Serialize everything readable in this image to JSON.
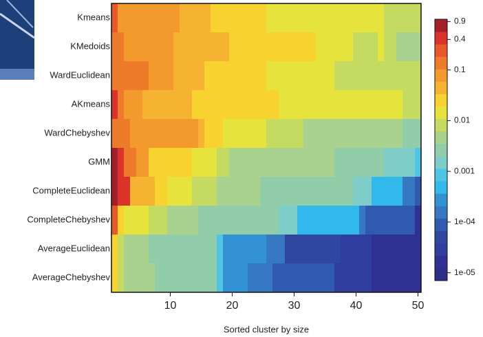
{
  "chart_data": {
    "type": "heatmap",
    "categories": [
      "Kmeans",
      "KMedoids",
      "WardEuclidean",
      "AKmeans",
      "WardChebyshev",
      "GMM",
      "CompleteEuclidean",
      "CompleteChebyshev",
      "AverageEuclidean",
      "AverageChebyshev"
    ],
    "x": [
      1,
      2,
      3,
      4,
      5,
      6,
      7,
      8,
      9,
      10,
      11,
      12,
      13,
      14,
      15,
      16,
      17,
      18,
      19,
      20,
      21,
      22,
      23,
      24,
      25,
      26,
      27,
      28,
      29,
      30,
      31,
      32,
      33,
      34,
      35,
      36,
      37,
      38,
      39,
      40,
      41,
      42,
      43,
      44,
      45,
      46,
      47,
      48,
      49,
      50
    ],
    "xlim": [
      0.5,
      50.5
    ],
    "xticks": [
      10,
      20,
      30,
      40,
      50
    ],
    "xlabel": "Sorted cluster by size",
    "values": [
      [
        0.2,
        0.07,
        0.07,
        0.07,
        0.07,
        0.07,
        0.07,
        0.07,
        0.07,
        0.07,
        0.07,
        0.04,
        0.04,
        0.04,
        0.04,
        0.04,
        0.025,
        0.025,
        0.025,
        0.025,
        0.025,
        0.025,
        0.025,
        0.025,
        0.025,
        0.015,
        0.015,
        0.015,
        0.015,
        0.015,
        0.015,
        0.015,
        0.015,
        0.015,
        0.015,
        0.015,
        0.015,
        0.015,
        0.015,
        0.015,
        0.015,
        0.015,
        0.015,
        0.015,
        0.008,
        0.008,
        0.008,
        0.008,
        0.008,
        0.008
      ],
      [
        0.12,
        0.12,
        0.07,
        0.07,
        0.07,
        0.07,
        0.07,
        0.07,
        0.07,
        0.07,
        0.04,
        0.04,
        0.04,
        0.04,
        0.04,
        0.04,
        0.04,
        0.04,
        0.04,
        0.025,
        0.025,
        0.025,
        0.025,
        0.025,
        0.025,
        0.025,
        0.025,
        0.025,
        0.025,
        0.025,
        0.025,
        0.025,
        0.025,
        0.015,
        0.015,
        0.015,
        0.015,
        0.015,
        0.015,
        0.008,
        0.008,
        0.008,
        0.008,
        0.012,
        0.008,
        0.008,
        0.005,
        0.005,
        0.005,
        0.005
      ],
      [
        0.13,
        0.13,
        0.13,
        0.13,
        0.13,
        0.13,
        0.06,
        0.06,
        0.06,
        0.06,
        0.04,
        0.04,
        0.04,
        0.04,
        0.04,
        0.025,
        0.025,
        0.025,
        0.025,
        0.025,
        0.025,
        0.025,
        0.025,
        0.025,
        0.025,
        0.015,
        0.015,
        0.015,
        0.015,
        0.015,
        0.015,
        0.015,
        0.015,
        0.015,
        0.015,
        0.015,
        0.008,
        0.008,
        0.008,
        0.008,
        0.008,
        0.008,
        0.008,
        0.008,
        0.008,
        0.008,
        0.008,
        0.008,
        0.008,
        0.008
      ],
      [
        0.4,
        0.13,
        0.06,
        0.06,
        0.06,
        0.04,
        0.04,
        0.04,
        0.04,
        0.04,
        0.04,
        0.04,
        0.04,
        0.025,
        0.025,
        0.025,
        0.025,
        0.025,
        0.025,
        0.025,
        0.025,
        0.025,
        0.025,
        0.025,
        0.025,
        0.025,
        0.025,
        0.015,
        0.015,
        0.015,
        0.015,
        0.015,
        0.015,
        0.015,
        0.015,
        0.015,
        0.015,
        0.015,
        0.015,
        0.015,
        0.015,
        0.015,
        0.015,
        0.015,
        0.015,
        0.015,
        0.015,
        0.008,
        0.008,
        0.008
      ],
      [
        0.15,
        0.15,
        0.15,
        0.1,
        0.1,
        0.1,
        0.1,
        0.1,
        0.1,
        0.06,
        0.06,
        0.06,
        0.06,
        0.06,
        0.04,
        0.025,
        0.025,
        0.025,
        0.015,
        0.015,
        0.015,
        0.015,
        0.015,
        0.015,
        0.015,
        0.008,
        0.008,
        0.008,
        0.008,
        0.008,
        0.008,
        0.005,
        0.005,
        0.005,
        0.005,
        0.005,
        0.005,
        0.005,
        0.005,
        0.005,
        0.005,
        0.005,
        0.004,
        0.004,
        0.004,
        0.004,
        0.004,
        0.002,
        0.002,
        0.002
      ],
      [
        0.9,
        0.4,
        0.12,
        0.12,
        0.06,
        0.06,
        0.025,
        0.025,
        0.025,
        0.025,
        0.025,
        0.025,
        0.025,
        0.015,
        0.015,
        0.015,
        0.015,
        0.008,
        0.008,
        0.005,
        0.005,
        0.005,
        0.005,
        0.005,
        0.005,
        0.005,
        0.005,
        0.004,
        0.004,
        0.004,
        0.004,
        0.004,
        0.004,
        0.004,
        0.004,
        0.004,
        0.0025,
        0.0025,
        0.0025,
        0.0025,
        0.0025,
        0.0025,
        0.0025,
        0.0025,
        0.0012,
        0.0012,
        0.0012,
        0.0012,
        0.0012,
        0.0007
      ],
      [
        0.9,
        0.35,
        0.35,
        0.04,
        0.04,
        0.04,
        0.04,
        0.025,
        0.025,
        0.015,
        0.015,
        0.015,
        0.015,
        0.008,
        0.008,
        0.008,
        0.008,
        0.005,
        0.005,
        0.005,
        0.005,
        0.005,
        0.005,
        0.005,
        0.003,
        0.003,
        0.003,
        0.003,
        0.003,
        0.003,
        0.003,
        0.003,
        0.003,
        0.003,
        0.003,
        0.002,
        0.002,
        0.002,
        0.002,
        0.0012,
        0.0012,
        0.0012,
        0.0006,
        0.0006,
        0.0006,
        0.0006,
        0.0006,
        0.0002,
        0.0002,
        0.0001
      ],
      [
        0.3,
        0.025,
        0.015,
        0.015,
        0.015,
        0.015,
        0.008,
        0.008,
        0.008,
        0.005,
        0.005,
        0.005,
        0.005,
        0.005,
        0.003,
        0.003,
        0.003,
        0.003,
        0.003,
        0.002,
        0.002,
        0.002,
        0.002,
        0.002,
        0.002,
        0.002,
        0.002,
        0.0012,
        0.0012,
        0.0012,
        0.0006,
        0.0006,
        0.0006,
        0.0006,
        0.0006,
        0.0006,
        0.0006,
        0.0006,
        0.0006,
        0.0006,
        0.0002,
        0.0001,
        0.0001,
        0.0001,
        0.0001,
        0.0001,
        0.0001,
        7e-05,
        7e-05,
        2e-05
      ],
      [
        0.025,
        0.008,
        0.005,
        0.005,
        0.005,
        0.005,
        0.003,
        0.003,
        0.003,
        0.003,
        0.003,
        0.003,
        0.002,
        0.002,
        0.002,
        0.002,
        0.002,
        0.0008,
        0.0003,
        0.0003,
        0.0003,
        0.0003,
        0.0003,
        0.0003,
        0.0003,
        0.00012,
        0.00012,
        0.00012,
        5e-05,
        5e-05,
        5e-05,
        5e-05,
        5e-05,
        5e-05,
        5e-05,
        5e-05,
        5e-05,
        3e-05,
        3e-05,
        3e-05,
        3e-05,
        3e-05,
        1.5e-05,
        1.5e-05,
        1.5e-05,
        1.5e-05,
        1.5e-05,
        1.5e-05,
        1.5e-05,
        1.5e-05
      ],
      [
        0.025,
        0.008,
        0.005,
        0.005,
        0.005,
        0.005,
        0.005,
        0.003,
        0.003,
        0.003,
        0.003,
        0.003,
        0.002,
        0.002,
        0.002,
        0.002,
        0.002,
        0.0008,
        0.0003,
        0.0003,
        0.0003,
        0.0003,
        0.00012,
        0.00012,
        0.00012,
        0.00012,
        8e-05,
        8e-05,
        8e-05,
        8e-05,
        8e-05,
        8e-05,
        8e-05,
        8e-05,
        8e-05,
        8e-05,
        3e-05,
        3e-05,
        3e-05,
        3e-05,
        3e-05,
        3e-05,
        1.5e-05,
        1.5e-05,
        1.5e-05,
        1.5e-05,
        1.5e-05,
        1.5e-05,
        1.5e-05,
        1.5e-05
      ]
    ],
    "color_log": true,
    "clim": [
      7e-06,
      1
    ],
    "cticks": [
      0.9,
      0.4,
      0.1,
      0.01,
      0.001,
      {
        "value": 0.0001,
        "label": "1e-04"
      },
      {
        "value": 1e-05,
        "label": "1e-05"
      }
    ],
    "colors": [
      "#2b2f86",
      "#2e3192",
      "#2f3d9e",
      "#30479f",
      "#2f5ab0",
      "#3778c2",
      "#3392d3",
      "#31b9ec",
      "#4fc5e6",
      "#7ecdc8",
      "#92cda9",
      "#a8d28e",
      "#c5da60",
      "#e6e43c",
      "#f8d22f",
      "#f6b331",
      "#f39a2c",
      "#ee7b2a",
      "#e8582a",
      "#d9332a",
      "#a3202a"
    ]
  }
}
